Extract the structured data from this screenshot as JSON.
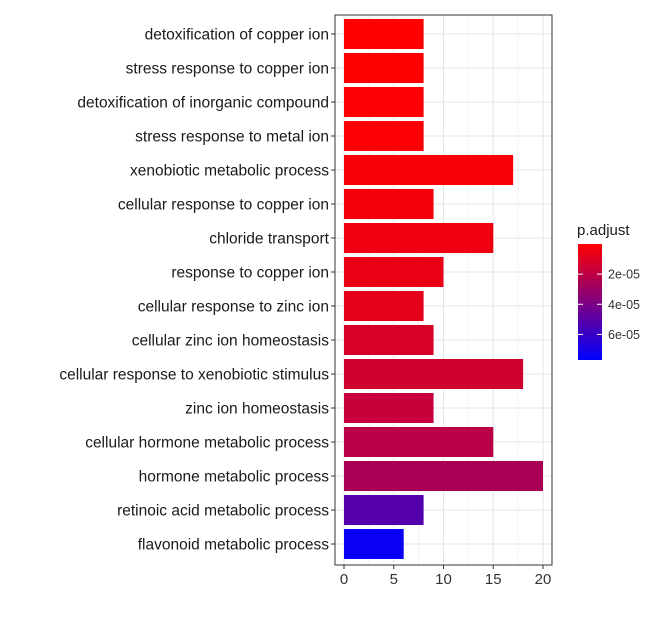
{
  "chart_data": {
    "type": "bar",
    "orientation": "horizontal",
    "categories": [
      "detoxification of copper ion",
      "stress response to copper ion",
      "detoxification of inorganic compound",
      "stress response to metal ion",
      "xenobiotic metabolic process",
      "cellular response to copper ion",
      "chloride transport",
      "response to copper ion",
      "cellular response to zinc ion",
      "cellular zinc ion homeostasis",
      "cellular response to xenobiotic stimulus",
      "zinc ion homeostasis",
      "cellular hormone metabolic process",
      "hormone metabolic process",
      "retinoic acid metabolic process",
      "flavonoid metabolic process"
    ],
    "values": [
      8,
      8,
      8,
      8,
      17,
      9,
      15,
      10,
      8,
      9,
      18,
      9,
      15,
      20,
      8,
      6
    ],
    "p_adjust": [
      2e-07,
      5e-07,
      8e-07,
      1.2e-06,
      2.2e-06,
      3.2e-06,
      4.8e-06,
      6.2e-06,
      8e-06,
      1.2e-05,
      1.45e-05,
      1.75e-05,
      2.1e-05,
      2.6e-05,
      5.2e-05,
      7.4e-05
    ],
    "xticks": [
      0,
      5,
      10,
      15,
      20
    ],
    "xlim": [
      0,
      20.2
    ],
    "grid": true,
    "legend": {
      "title": "p.adjust",
      "placement": "right",
      "range": [
        0,
        7.7e-05
      ],
      "ticks": [
        {
          "value": 2e-05,
          "label": "2e-05"
        },
        {
          "value": 4e-05,
          "label": "4e-05"
        },
        {
          "value": 6e-05,
          "label": "6e-05"
        }
      ],
      "low_color": "#ff0000",
      "high_color": "#0000ff"
    }
  }
}
